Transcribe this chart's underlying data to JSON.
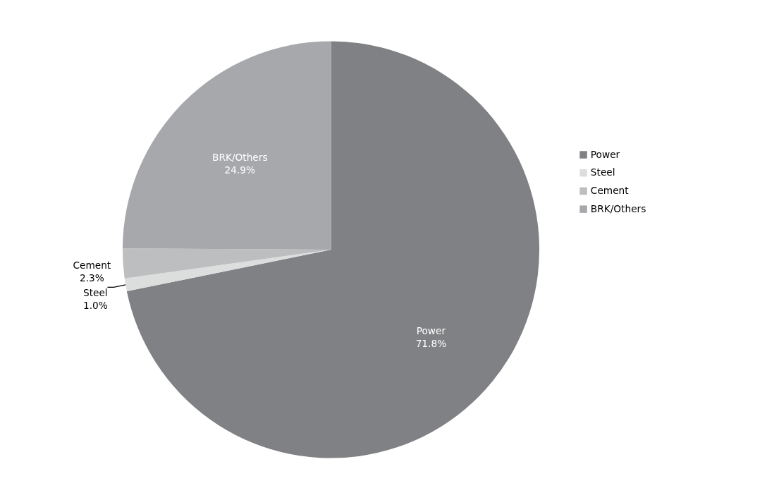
{
  "chart_data": {
    "type": "pie",
    "categories": [
      "Power",
      "Steel",
      "Cement",
      "BRK/Others"
    ],
    "values": [
      71.8,
      1.0,
      2.3,
      24.9
    ],
    "value_labels": [
      "71.8%",
      "1.0%",
      "2.3%",
      "24.9%"
    ],
    "colors": [
      "#808184",
      "#dcdddd",
      "#bcbec0",
      "#a6a8ab"
    ],
    "legend": "right"
  }
}
